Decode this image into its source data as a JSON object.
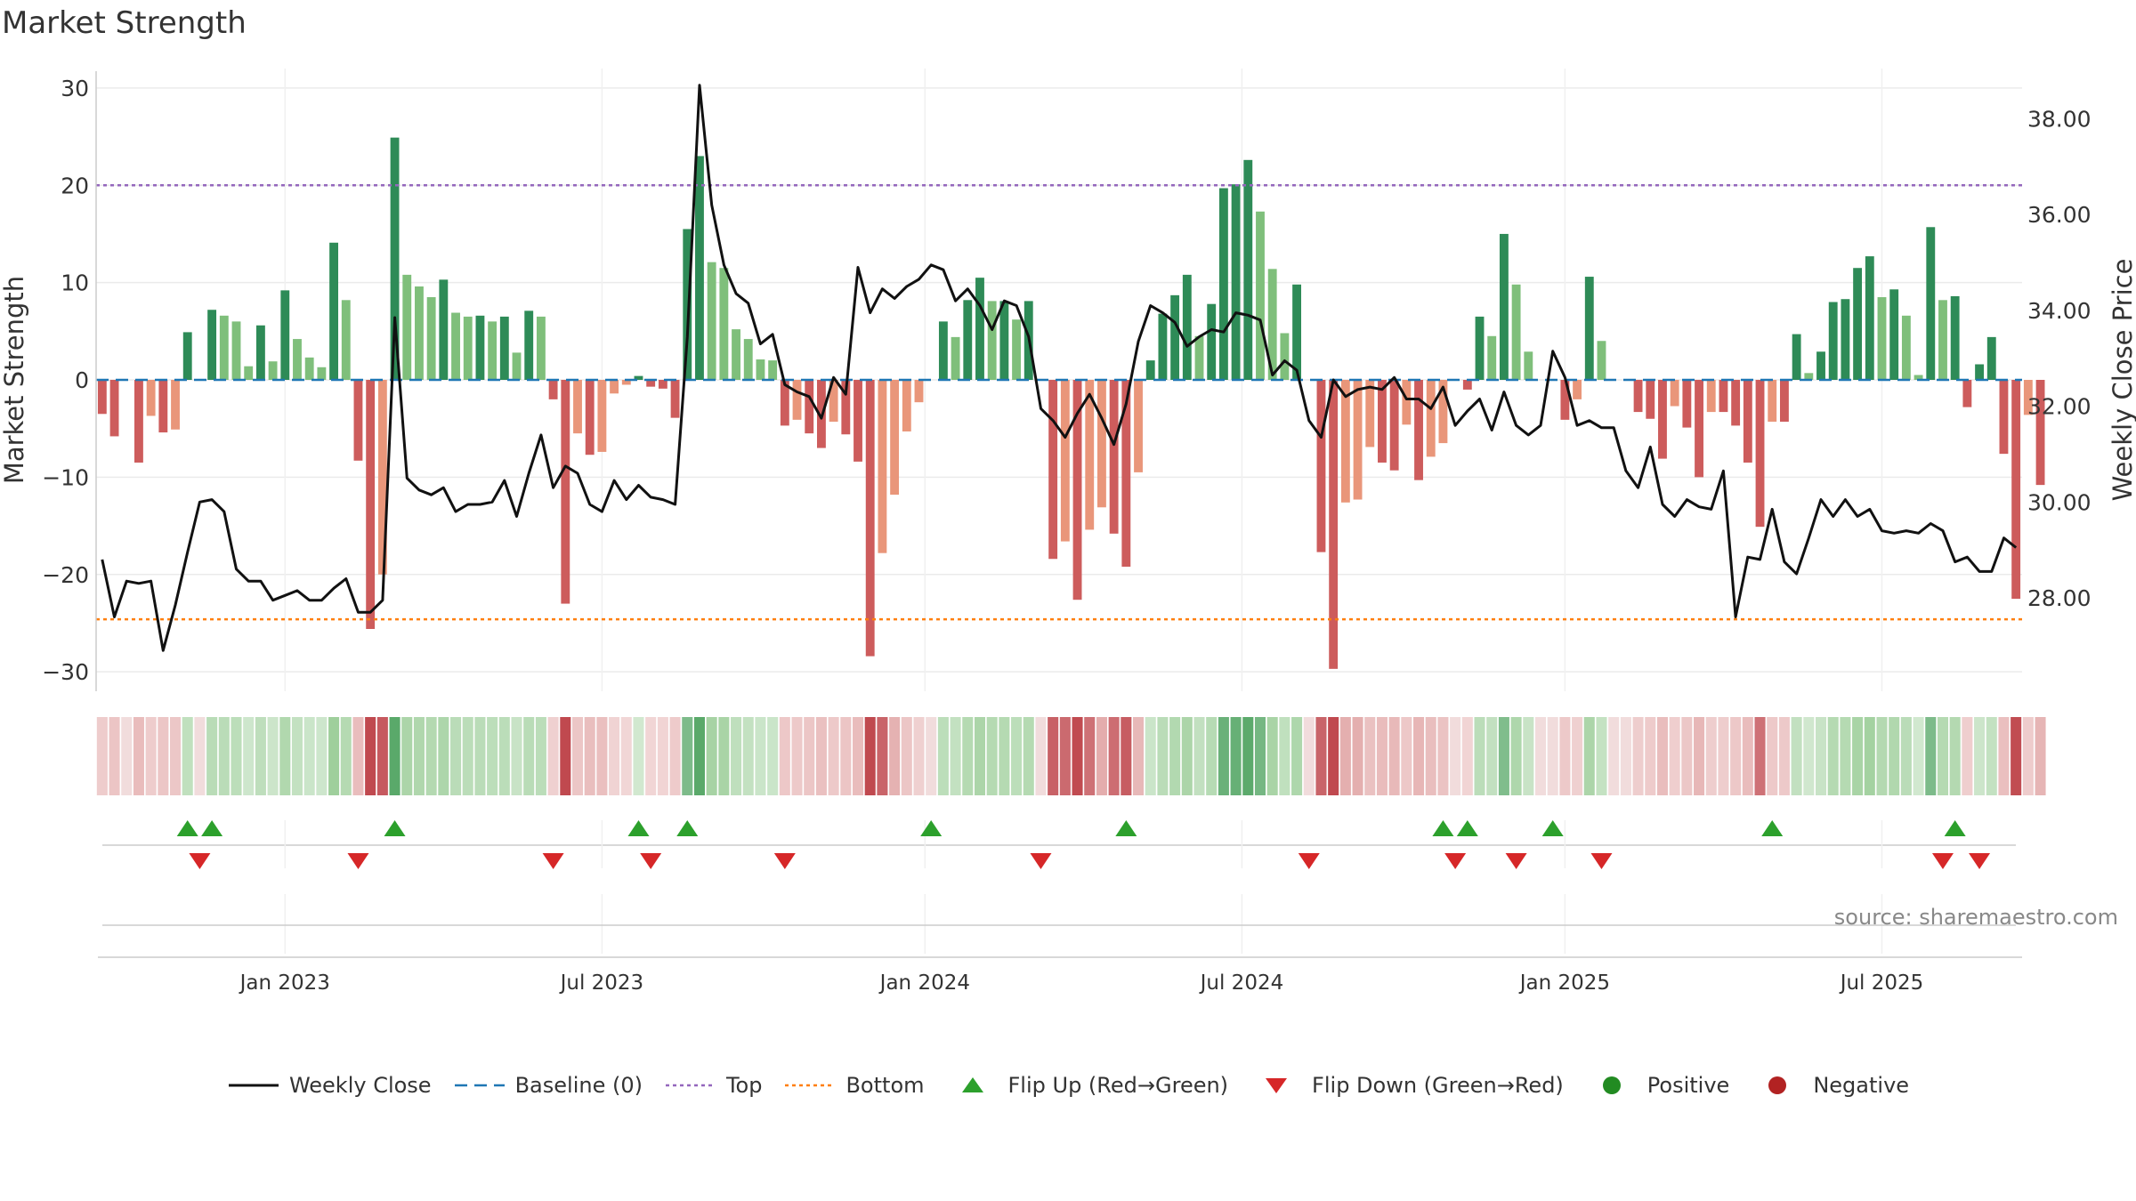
{
  "title": "Market Strength",
  "source": "source: sharemaestro.com",
  "colors": {
    "close": "#111111",
    "baseline": "#1f77b4",
    "top": "#9467bd",
    "bottom": "#ff7f0e",
    "flip_up": "#2ca02c",
    "flip_down": "#d62728",
    "positive": "#228b22",
    "negative": "#b22222",
    "pos_dark": "#2e8b57",
    "pos_light": "#7fbf7b",
    "neg_dark": "#cd5c5c",
    "neg_light": "#e9967a"
  },
  "legend": [
    {
      "key": "close",
      "label": "Weekly Close"
    },
    {
      "key": "baseline",
      "label": "Baseline (0)"
    },
    {
      "key": "top",
      "label": "Top"
    },
    {
      "key": "bottom",
      "label": "Bottom"
    },
    {
      "key": "flip_up",
      "label": "Flip Up (Red→Green)"
    },
    {
      "key": "flip_down",
      "label": "Flip Down (Green→Red)"
    },
    {
      "key": "positive",
      "label": "Positive"
    },
    {
      "key": "negative",
      "label": "Negative"
    }
  ],
  "chart_data": {
    "type": "bar",
    "title": "Market Strength",
    "ylabel": "Market Strength",
    "y2label": "Weekly Close Price",
    "ylim": [
      -32,
      32
    ],
    "y2lim": [
      26.05,
      39.05
    ],
    "yticks": [
      30,
      20,
      10,
      0,
      -10,
      -20,
      -30
    ],
    "ytick_labels": [
      "30",
      "20",
      "10",
      "0",
      "−10",
      "−20",
      "−30"
    ],
    "y2ticks": [
      38,
      36,
      34,
      32,
      30,
      28
    ],
    "y2tick_labels": [
      "38.00",
      "36.00",
      "34.00",
      "32.00",
      "30.00",
      "28.00"
    ],
    "top_level": 20,
    "bottom_level": -24.6,
    "x_range": [
      -0.5,
      157.5
    ],
    "x_ticks": [
      15,
      41,
      67.5,
      93.5,
      120,
      146
    ],
    "x_tick_labels": [
      "Jan 2023",
      "Jul 2023",
      "Jan 2024",
      "Jul 2024",
      "Jan 2025",
      "Jul 2025"
    ],
    "strength": [
      -3.5,
      -5.8,
      0,
      -8.5,
      -3.7,
      -5.4,
      -5.1,
      4.9,
      0,
      7.2,
      6.6,
      6,
      1.4,
      5.6,
      1.9,
      9.2,
      4.2,
      2.3,
      1.3,
      14.1,
      8.2,
      -8.3,
      -25.6,
      -20,
      24.9,
      10.8,
      9.6,
      8.5,
      10.3,
      6.9,
      6.5,
      6.6,
      6,
      6.5,
      2.8,
      7.1,
      6.5,
      -2,
      -23,
      -5.5,
      -7.7,
      -7.4,
      -1.4,
      -0.5,
      0.4,
      -0.7,
      -0.9,
      -3.9,
      15.5,
      23,
      12.1,
      11.5,
      5.2,
      4.2,
      2.1,
      2,
      -4.7,
      -4.1,
      -5.5,
      -7,
      -4.3,
      -5.6,
      -8.4,
      -28.4,
      -17.8,
      -11.8,
      -5.3,
      -2.3,
      0,
      6,
      4.4,
      8.2,
      10.5,
      8.1,
      8.1,
      6.2,
      8.1,
      0,
      -18.4,
      -16.6,
      -22.6,
      -15.4,
      -13.1,
      -15.8,
      -19.2,
      -9.5,
      2,
      6.8,
      8.7,
      10.8,
      4.5,
      7.8,
      19.7,
      20.1,
      22.6,
      17.3,
      11.4,
      4.8,
      9.8,
      0,
      -17.7,
      -29.7,
      -12.6,
      -12.3,
      -6.9,
      -8.5,
      -9.3,
      -4.6,
      -10.3,
      -7.9,
      -6.5,
      0,
      -1,
      6.5,
      4.5,
      15,
      9.8,
      2.9,
      0,
      0,
      -4.1,
      -2,
      10.6,
      4,
      0,
      0,
      -3.3,
      -4,
      -8.1,
      -2.7,
      -4.9,
      -10,
      -3.3,
      -3.3,
      -4.7,
      -8.5,
      -15.1,
      -4.3,
      -4.3,
      4.7,
      0.7,
      2.9,
      8,
      8.3,
      11.5,
      12.7,
      8.5,
      9.3,
      6.6,
      0.5,
      15.7,
      8.2,
      8.6,
      -2.8,
      1.6,
      4.4,
      -7.6,
      -22.5,
      -3.6,
      -10.8
    ],
    "close": [
      28.8,
      27.6,
      28.35,
      28.3,
      28.35,
      26.9,
      27.85,
      28.95,
      30,
      30.05,
      29.8,
      28.6,
      28.35,
      28.35,
      27.95,
      28.05,
      28.15,
      27.95,
      27.95,
      28.2,
      28.4,
      27.7,
      27.7,
      27.95,
      33.85,
      30.5,
      30.25,
      30.15,
      30.3,
      29.8,
      29.95,
      29.95,
      30,
      30.45,
      29.7,
      30.6,
      31.4,
      30.3,
      30.75,
      30.6,
      29.95,
      29.8,
      30.45,
      30.05,
      30.35,
      30.1,
      30.05,
      29.95,
      33.45,
      38.7,
      36.2,
      34.95,
      34.35,
      34.15,
      33.3,
      33.5,
      32.45,
      32.3,
      32.2,
      31.75,
      32.6,
      32.25,
      34.9,
      33.95,
      34.45,
      34.25,
      34.5,
      34.65,
      34.95,
      34.85,
      34.2,
      34.45,
      34.1,
      33.6,
      34.2,
      34.1,
      33.45,
      31.95,
      31.7,
      31.35,
      31.85,
      32.25,
      31.75,
      31.2,
      32.05,
      33.35,
      34.1,
      33.95,
      33.75,
      33.25,
      33.45,
      33.6,
      33.55,
      33.95,
      33.9,
      33.8,
      32.65,
      32.95,
      32.75,
      31.7,
      31.35,
      32.55,
      32.2,
      32.35,
      32.4,
      32.35,
      32.6,
      32.15,
      32.15,
      31.95,
      32.4,
      31.6,
      31.9,
      32.15,
      31.5,
      32.3,
      31.6,
      31.4,
      31.6,
      33.15,
      32.6,
      31.6,
      31.7,
      31.55,
      31.55,
      30.65,
      30.3,
      31.15,
      29.95,
      29.7,
      30.05,
      29.9,
      29.85,
      30.65,
      27.6,
      28.85,
      28.8,
      29.85,
      28.75,
      28.5,
      29.25,
      30.05,
      29.7,
      30.05,
      29.7,
      29.85,
      29.4,
      29.35,
      29.4,
      29.35,
      29.55,
      29.4,
      28.75,
      28.85,
      28.55,
      28.55,
      29.25,
      29.05
    ],
    "flip_up_index": [
      7,
      9,
      24,
      44,
      48,
      68,
      84,
      110,
      112,
      119,
      137,
      152
    ],
    "flip_down_index": [
      8,
      21,
      37,
      45,
      56,
      77,
      99,
      111,
      116,
      123,
      151,
      154
    ]
  }
}
